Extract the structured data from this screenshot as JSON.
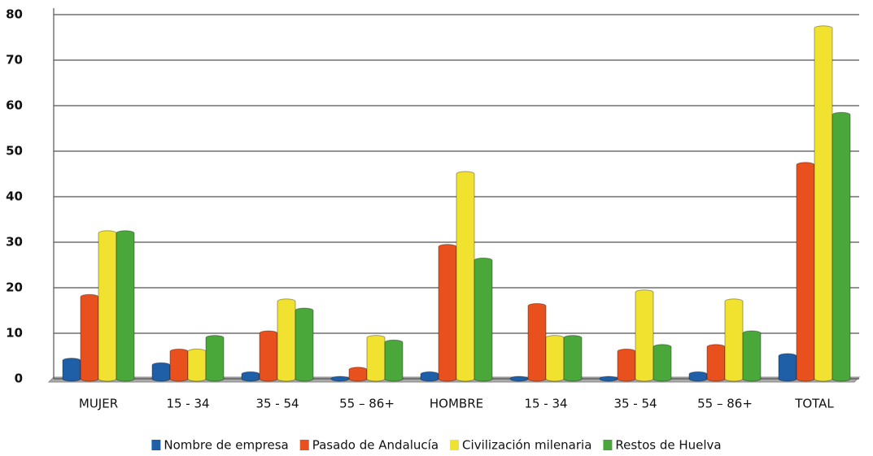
{
  "chart_data": {
    "type": "bar",
    "categories": [
      "MUJER",
      "15 - 34",
      "35 - 54",
      "55 – 86+",
      "HOMBRE",
      "15 - 34",
      "35 - 54",
      "55 – 86+",
      "TOTAL"
    ],
    "series": [
      {
        "name": "Nombre de empresa",
        "color": "#1f5fa8",
        "values": [
          4,
          3,
          1,
          0,
          1,
          0,
          0,
          1,
          5
        ]
      },
      {
        "name": "Pasado de Andalucía",
        "color": "#e8501e",
        "values": [
          18,
          6,
          10,
          2,
          29,
          16,
          6,
          7,
          47
        ]
      },
      {
        "name": "Civilización milenaria",
        "color": "#f2e230",
        "values": [
          32,
          6,
          17,
          9,
          45,
          9,
          19,
          17,
          77
        ]
      },
      {
        "name": "Restos de Huelva",
        "color": "#4aa83a",
        "values": [
          32,
          9,
          15,
          8,
          26,
          9,
          7,
          10,
          58
        ]
      }
    ],
    "ylim": [
      0,
      80
    ],
    "yticks": [
      0,
      10,
      20,
      30,
      40,
      50,
      60,
      70,
      80
    ],
    "grid": true,
    "legend": "bottom"
  }
}
